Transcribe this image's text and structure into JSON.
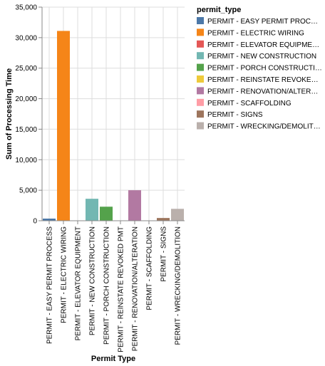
{
  "chart_data": {
    "type": "bar",
    "categories": [
      "PERMIT - EASY PERMIT PROCESS",
      "PERMIT - ELECTRIC WIRING",
      "PERMIT - ELEVATOR EQUIPMENT",
      "PERMIT - NEW CONSTRUCTION",
      "PERMIT - PORCH CONSTRUCTION",
      "PERMIT - REINSTATE REVOKED PMT",
      "PERMIT - RENOVATION/ALTERATION",
      "PERMIT - SCAFFOLDING",
      "PERMIT - SIGNS",
      "PERMIT - WRECKING/DEMOLITION"
    ],
    "values": [
      350,
      31100,
      0,
      3600,
      2300,
      0,
      5000,
      0,
      450,
      1950
    ],
    "colors": [
      "#4c78a8",
      "#f58518",
      "#e45756",
      "#72b7b2",
      "#54a24b",
      "#eeca3b",
      "#b279a2",
      "#ff9da6",
      "#9d755d",
      "#bab0ac"
    ],
    "xlabel": "Permit Type",
    "ylabel": "Sum of Processing Time",
    "ylim": [
      0,
      35000
    ],
    "yticks": [
      0,
      5000,
      10000,
      15000,
      20000,
      25000,
      30000,
      35000
    ],
    "ytick_labels": [
      "0",
      "5,000",
      "10,000",
      "15,000",
      "20,000",
      "25,000",
      "30,000",
      "35,000"
    ],
    "grid": true,
    "legend": {
      "title": "permit_type",
      "position": "right",
      "entries": [
        "PERMIT - EASY PERMIT PROC…",
        "PERMIT - ELECTRIC WIRING",
        "PERMIT - ELEVATOR EQUIPME…",
        "PERMIT - NEW CONSTRUCTION",
        "PERMIT - PORCH CONSTRUCTI…",
        "PERMIT - REINSTATE REVOKE…",
        "PERMIT - RENOVATION/ALTER…",
        "PERMIT - SCAFFOLDING",
        "PERMIT - SIGNS",
        "PERMIT - WRECKING/DEMOLIT…"
      ]
    }
  }
}
